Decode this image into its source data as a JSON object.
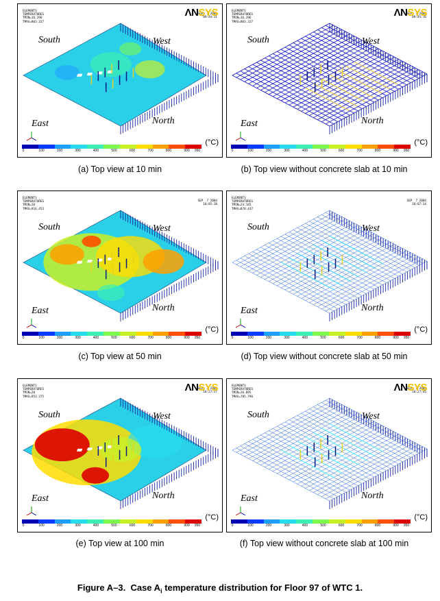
{
  "figure": {
    "label": "Figure A–3.",
    "title_pre": "Case A",
    "title_sub": "i",
    "title_post": " temperature distribution for Floor 97 of WTC 1."
  },
  "common": {
    "logo_a": "ΛN",
    "logo_b": "SYS",
    "hdr_line1": "ELEMENTS",
    "hdr_line2": "TEMPERATURES",
    "dir_south": "South",
    "dir_west": "West",
    "dir_east": "East",
    "dir_north": "North",
    "unit": "(°C)"
  },
  "legend": {
    "colors": [
      "#0000b4",
      "#0a3cff",
      "#1ea0ff",
      "#28dcf0",
      "#3cf0b4",
      "#7cfa50",
      "#c8f028",
      "#ffdc00",
      "#ffa000",
      "#ff5000",
      "#dc0000"
    ],
    "tick_labels": [
      "0",
      "100",
      "200",
      "300",
      "400",
      "500",
      "600",
      "700",
      "800",
      "900",
      "950"
    ]
  },
  "panels": [
    {
      "id": "a",
      "caption": "(a) Top view at 10 min",
      "tmin": "TMIN=16.296",
      "tmax": "TMAX=803.327",
      "date": "SEP  7 2004",
      "time": "09:44:31",
      "show_logo": true,
      "slab": true,
      "heat_level": 1
    },
    {
      "id": "b",
      "caption": "(b) Top view without concrete slab at 10 min",
      "tmin": "TMIN=16.296",
      "tmax": "TMAX=803.327",
      "date": "SEP  7 2004",
      "time": "09:45:16",
      "show_logo": true,
      "slab": false,
      "heat_level": 1
    },
    {
      "id": "c",
      "caption": "(c) Top view at 50 min",
      "tmin": "TMIN=20",
      "tmax": "TMAX=916.453",
      "date": "SEP  7 2004",
      "time": "10:05:18",
      "show_logo": false,
      "slab": true,
      "heat_level": 2
    },
    {
      "id": "d",
      "caption": "(d) Top view without concrete slab at 50 min",
      "tmin": "TMIN=24.145",
      "tmax": "TMAX=870.437",
      "date": "SEP  7 2004",
      "time": "10:07:14",
      "show_logo": false,
      "slab": false,
      "heat_level": 2
    },
    {
      "id": "e",
      "caption": "(e) Top view at 100 min",
      "tmin": "TMIN=20",
      "tmax": "TMAX=953.375",
      "date": "SEP  7 2004",
      "time": "10:27:57",
      "show_logo": true,
      "slab": true,
      "heat_level": 3
    },
    {
      "id": "f",
      "caption": "(f) Top view without concrete slab at 100 min",
      "tmin": "TMIN=26.895",
      "tmax": "TMAX=785.796",
      "date": "SEP  7 2004",
      "time": "10:27:45",
      "show_logo": true,
      "slab": false,
      "heat_level": 3
    }
  ]
}
